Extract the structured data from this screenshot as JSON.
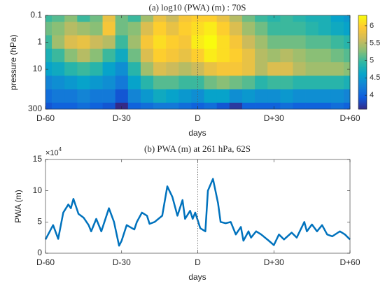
{
  "chart_data": [
    {
      "type": "heatmap",
      "title": "(a) log10 (PWA) (m) : 70S",
      "x_label": "days",
      "y_label": "pressure (hPa)",
      "x": [
        -60,
        -55,
        -50,
        -45,
        -40,
        -35,
        -30,
        -25,
        -20,
        -15,
        -10,
        -5,
        0,
        5,
        10,
        15,
        20,
        25,
        30,
        35,
        40,
        45,
        50,
        55,
        60
      ],
      "y": [
        0.1,
        0.3,
        1,
        3,
        10,
        30,
        100,
        300
      ],
      "z": [
        [
          5.0,
          5.1,
          5.3,
          5.0,
          5.2,
          5.8,
          5.2,
          5.0,
          5.4,
          5.8,
          5.6,
          5.9,
          6.0,
          6.0,
          5.8,
          5.5,
          5.2,
          5.0,
          4.9,
          5.0,
          4.9,
          4.8,
          4.8,
          4.6,
          4.5
        ],
        [
          5.2,
          5.3,
          5.5,
          5.4,
          5.3,
          5.9,
          5.2,
          5.3,
          5.7,
          6.0,
          5.8,
          6.0,
          6.1,
          6.2,
          6.0,
          5.7,
          5.4,
          5.2,
          5.0,
          5.0,
          5.0,
          4.9,
          4.8,
          4.7,
          4.6
        ],
        [
          5.0,
          5.4,
          5.7,
          5.8,
          5.6,
          5.5,
          5.0,
          5.4,
          5.9,
          6.1,
          6.0,
          5.9,
          6.2,
          6.3,
          6.1,
          5.9,
          5.6,
          5.4,
          5.2,
          5.2,
          5.2,
          5.1,
          5.1,
          5.0,
          4.9
        ],
        [
          4.8,
          5.0,
          5.3,
          5.5,
          5.3,
          5.0,
          4.7,
          5.2,
          5.7,
          6.0,
          5.9,
          5.8,
          6.0,
          6.2,
          6.1,
          6.0,
          5.8,
          5.5,
          5.4,
          5.5,
          5.4,
          5.3,
          5.3,
          5.2,
          5.1
        ],
        [
          4.6,
          4.7,
          4.9,
          5.0,
          4.9,
          4.6,
          4.4,
          4.9,
          5.4,
          5.7,
          5.6,
          5.5,
          5.6,
          5.8,
          5.9,
          5.9,
          5.8,
          5.5,
          5.7,
          5.7,
          5.5,
          5.4,
          5.4,
          5.4,
          5.3
        ],
        [
          4.3,
          4.4,
          4.5,
          4.6,
          4.5,
          4.4,
          4.2,
          4.6,
          4.9,
          5.1,
          5.1,
          5.0,
          5.0,
          5.2,
          5.3,
          5.2,
          5.1,
          4.9,
          5.0,
          5.0,
          4.9,
          4.9,
          4.9,
          4.9,
          4.8
        ],
        [
          4.1,
          4.2,
          4.2,
          4.3,
          4.2,
          4.2,
          3.9,
          4.3,
          4.5,
          4.7,
          4.6,
          4.5,
          4.4,
          4.6,
          4.6,
          4.4,
          4.5,
          4.4,
          4.4,
          4.5,
          4.4,
          4.4,
          4.4,
          4.4,
          4.3
        ],
        [
          3.9,
          4.0,
          4.0,
          4.1,
          4.0,
          3.9,
          3.6,
          4.0,
          4.1,
          4.2,
          4.2,
          4.1,
          4.0,
          4.1,
          3.9,
          3.7,
          4.0,
          4.0,
          4.0,
          4.1,
          4.0,
          4.0,
          4.0,
          4.1,
          4.0
        ]
      ],
      "xlim": [
        -60,
        60
      ],
      "xticks": [
        {
          "value": -60,
          "label": "D-60"
        },
        {
          "value": -30,
          "label": "D-30"
        },
        {
          "value": 0,
          "label": "D"
        },
        {
          "value": 30,
          "label": "D+30"
        },
        {
          "value": 60,
          "label": "D+60"
        }
      ],
      "ylim": [
        0.1,
        300
      ],
      "y_log": true,
      "y_reversed": true,
      "yticks": [
        0.1,
        1,
        10,
        300
      ],
      "clim": [
        3.6,
        6.3
      ],
      "cticks": [
        4,
        4.5,
        5,
        5.5,
        6
      ],
      "colormap": [
        "#352a87",
        "#0f5cdd",
        "#1481d6",
        "#06a4ca",
        "#2eb7a4",
        "#87bf77",
        "#d1bb59",
        "#fec832",
        "#f9fb0e"
      ],
      "vline": 0
    },
    {
      "type": "line",
      "title": "(b) PWA (m) at 261 hPa, 62S",
      "x_label": "days",
      "y_label": "PWA (m)",
      "exponent_base": "×10",
      "exponent": "4",
      "color": "#0072bd",
      "x": [
        -60,
        -57,
        -55,
        -53,
        -51,
        -50,
        -49,
        -47,
        -45,
        -43,
        -42,
        -40,
        -38,
        -35,
        -33,
        -31,
        -30,
        -28,
        -25,
        -24,
        -22,
        -20,
        -19,
        -17,
        -14,
        -12,
        -10,
        -8,
        -6,
        -5,
        -3,
        -2,
        -1,
        1,
        3,
        4,
        6,
        8,
        9,
        11,
        13,
        15,
        17,
        18,
        20,
        21,
        23,
        25,
        28,
        30,
        32,
        34,
        37,
        39,
        42,
        43,
        45,
        47,
        49,
        51,
        53,
        56,
        58,
        60
      ],
      "values": [
        22000,
        45000,
        23000,
        65000,
        78000,
        72000,
        87000,
        63000,
        57000,
        45000,
        35000,
        55000,
        35000,
        72000,
        50000,
        12000,
        20000,
        45000,
        38000,
        50000,
        65000,
        60000,
        47000,
        50000,
        60000,
        107000,
        90000,
        60000,
        85000,
        55000,
        68000,
        55000,
        65000,
        40000,
        35000,
        100000,
        119000,
        80000,
        50000,
        48000,
        50000,
        30000,
        42000,
        20000,
        35000,
        25000,
        35000,
        30000,
        20000,
        13000,
        30000,
        22000,
        33000,
        25000,
        50000,
        35000,
        46000,
        35000,
        45000,
        30000,
        27000,
        35000,
        30000,
        22000
      ],
      "xlim": [
        -60,
        60
      ],
      "xticks": [
        {
          "value": -60,
          "label": "D-60"
        },
        {
          "value": -30,
          "label": "D-30"
        },
        {
          "value": 0,
          "label": "D"
        },
        {
          "value": 30,
          "label": "D+30"
        },
        {
          "value": 60,
          "label": "D+60"
        }
      ],
      "ylim": [
        0,
        150000
      ],
      "yticks": [
        {
          "value": 0,
          "label": "0"
        },
        {
          "value": 50000,
          "label": "5"
        },
        {
          "value": 100000,
          "label": "10"
        },
        {
          "value": 150000,
          "label": "15"
        }
      ],
      "vline": 0
    }
  ]
}
